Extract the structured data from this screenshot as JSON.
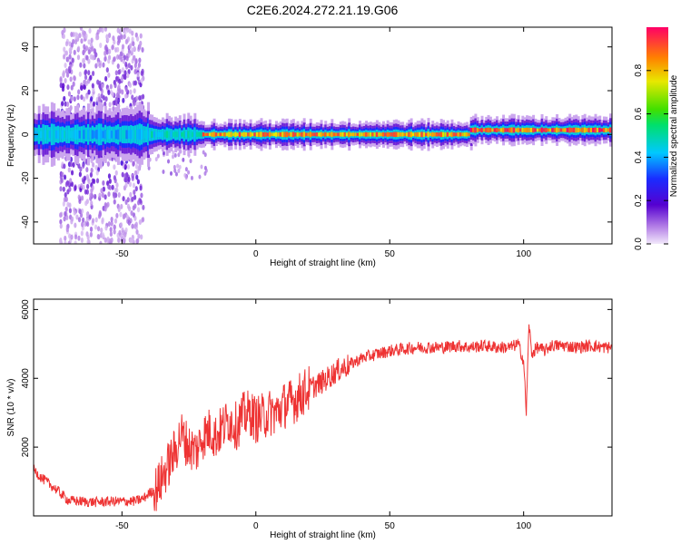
{
  "title": "C2E6.2024.272.21.19.G06",
  "colors": {
    "snr_line": "#ee3333",
    "frame": "#000000"
  },
  "chart_data": [
    {
      "type": "heatmap",
      "title": "C2E6.2024.272.21.19.G06",
      "xlabel": "Height of straight line (km)",
      "ylabel": "Frequency (Hz)",
      "xlim": [
        -83,
        133
      ],
      "ylim": [
        -50,
        49
      ],
      "xticks": [
        -50,
        0,
        50,
        100
      ],
      "xtick_labels": [
        "-50",
        "0",
        "50",
        "100"
      ],
      "yticks": [
        -40,
        -20,
        0,
        20,
        40
      ],
      "ytick_labels": [
        "-40",
        "-20",
        "0",
        "20",
        "40"
      ],
      "colorbar": {
        "label": "Normalized spectral amplitude",
        "range": [
          0,
          1
        ],
        "ticks": [
          0.0,
          0.2,
          0.4,
          0.6,
          0.8
        ],
        "tick_labels": [
          "0.0",
          "0.2",
          "0.4",
          "0.6",
          "0.8"
        ],
        "colormap": "rainbow"
      },
      "description_bands": [
        {
          "x_from": -83,
          "x_to": -40,
          "center_freq": 0,
          "halfwidth": 6,
          "peak_amp": 0.45
        },
        {
          "x_from": -40,
          "x_to": -20,
          "center_freq": 0,
          "halfwidth": 4,
          "peak_amp": 0.5
        },
        {
          "x_from": -20,
          "x_to": 80,
          "center_freq": 0,
          "halfwidth": 3,
          "peak_amp": 0.9
        },
        {
          "x_from": 80,
          "x_to": 133,
          "center_freq": 2,
          "halfwidth": 3,
          "peak_amp": 0.95
        }
      ],
      "scatter_region": {
        "x_from": -73,
        "x_to": -42,
        "freq_from": -50,
        "freq_to": 49,
        "amp": 0.2
      }
    },
    {
      "type": "line",
      "xlabel": "Height of straight line (km)",
      "ylabel": "SNR (10 * v/v)",
      "xlim": [
        -83,
        133
      ],
      "ylim": [
        0,
        6300
      ],
      "xticks": [
        -50,
        0,
        50,
        100
      ],
      "xtick_labels": [
        "-50",
        "0",
        "50",
        "100"
      ],
      "yticks": [
        2000,
        4000,
        6000
      ],
      "ytick_labels": [
        "2000",
        "4000",
        "6000"
      ],
      "series": [
        {
          "x": [
            -83,
            -80,
            -75,
            -70,
            -65,
            -60,
            -55,
            -50,
            -45,
            -42,
            -40,
            -37,
            -35,
            -32,
            -30,
            -28,
            -25,
            -22,
            -20,
            -17,
            -15,
            -12,
            -10,
            -7,
            -5,
            -2,
            0,
            3,
            5,
            8,
            10,
            13,
            15,
            18,
            20,
            25,
            30,
            35,
            40,
            45,
            50,
            55,
            60,
            65,
            70,
            75,
            80,
            85,
            90,
            95,
            98,
            100,
            101,
            102,
            103,
            105,
            108,
            110,
            115,
            120,
            125,
            130,
            133
          ],
          "y": [
            1350,
            1100,
            800,
            450,
            420,
            400,
            420,
            420,
            430,
            500,
            650,
            800,
            1100,
            1600,
            1900,
            2400,
            2000,
            1900,
            2300,
            2500,
            2300,
            2600,
            2800,
            2600,
            2900,
            3000,
            2800,
            2900,
            3000,
            3000,
            3200,
            3300,
            3400,
            3600,
            3700,
            3900,
            4200,
            4400,
            4600,
            4700,
            4800,
            4850,
            4900,
            4900,
            4900,
            4950,
            4900,
            4950,
            4900,
            4900,
            5000,
            4500,
            3000,
            5600,
            4700,
            4900,
            4800,
            4950,
            4950,
            4900,
            4950,
            4900,
            4900
          ]
        }
      ]
    }
  ]
}
